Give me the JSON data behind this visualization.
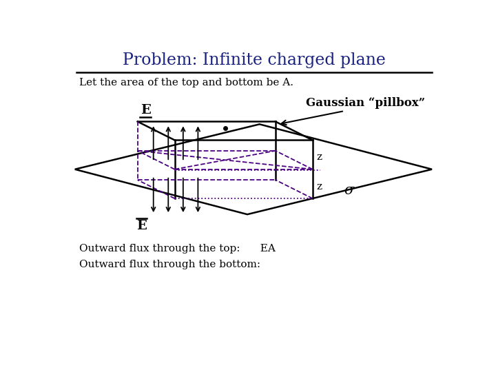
{
  "title": "Problem: Infinite charged plane",
  "title_color": "#1a237e",
  "subtitle": "Let the area of the top and bottom be A.",
  "bg_color": "#ffffff",
  "box_solid_color": "#000000",
  "box_dashed_color": "#4b0082",
  "box_dotted_color": "#4b0082",
  "label_E_top": "E",
  "label_E_bottom": "E",
  "label_sigma": "σ",
  "label_z1": "z",
  "label_z2": "z",
  "gaussian_label": "Gaussian “pillbox”",
  "bottom_text1": "Outward flux through the top:      EA",
  "bottom_text2": "Outward flux through the bottom:"
}
